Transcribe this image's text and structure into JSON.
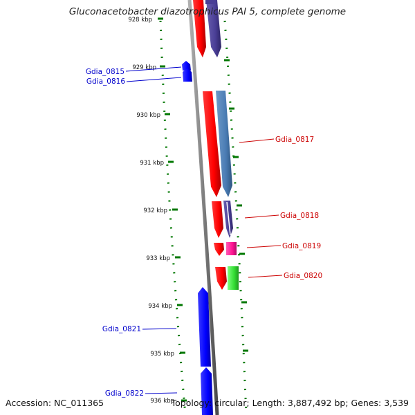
{
  "title": "Gluconacetobacter diazotrophicus PAI 5, complete genome",
  "footer": {
    "accession": "Accession: NC_011365",
    "summary": "Topology: circular; Length: 3,887,492 bp; Genes: 3,539"
  },
  "colors": {
    "backbone": "#808080",
    "tick": "#007700",
    "tick_label": "#111111",
    "forward_label": "#0000cc",
    "reverse_label": "#cc0000"
  },
  "ticks": [
    {
      "label": "928 kbp"
    },
    {
      "label": "929 kbp"
    },
    {
      "label": "930 kbp"
    },
    {
      "label": "931 kbp"
    },
    {
      "label": "932 kbp"
    },
    {
      "label": "933 kbp"
    },
    {
      "label": "934 kbp"
    },
    {
      "label": "935 kbp"
    },
    {
      "label": "936 kbp"
    }
  ],
  "gene_labels": {
    "gdia_0815": "Gdia_0815",
    "gdia_0816": "Gdia_0816",
    "gdia_0817": "Gdia_0817",
    "gdia_0818": "Gdia_0818",
    "gdia_0819": "Gdia_0819",
    "gdia_0820": "Gdia_0820",
    "gdia_0821": "Gdia_0821",
    "gdia_0822": "Gdia_0822"
  }
}
